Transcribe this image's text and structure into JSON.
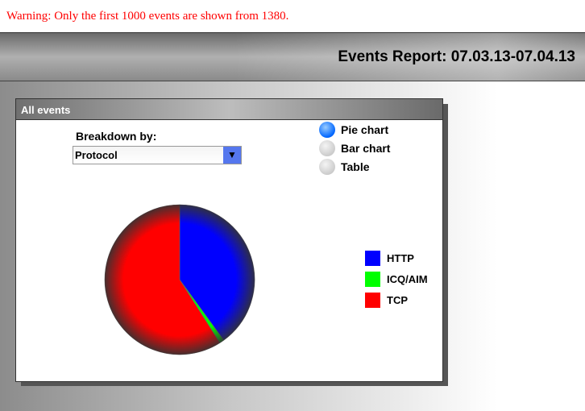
{
  "warning": "Warning: Only the first 1000 events are shown from 1380.",
  "header": {
    "title": "Events Report: 07.03.13-07.04.13"
  },
  "panel": {
    "title": "All events",
    "breakdown_label": "Breakdown by:",
    "breakdown_value": "Protocol",
    "view_options": [
      {
        "label": "Pie chart",
        "selected": true
      },
      {
        "label": "Bar chart",
        "selected": false
      },
      {
        "label": "Table",
        "selected": false
      }
    ]
  },
  "chart_data": {
    "type": "pie",
    "categories": [
      "HTTP",
      "ICQ/AIM",
      "TCP"
    ],
    "values": [
      40,
      1,
      59
    ],
    "colors": [
      "#0000ff",
      "#00ff00",
      "#ff0000"
    ],
    "legend": "right"
  }
}
